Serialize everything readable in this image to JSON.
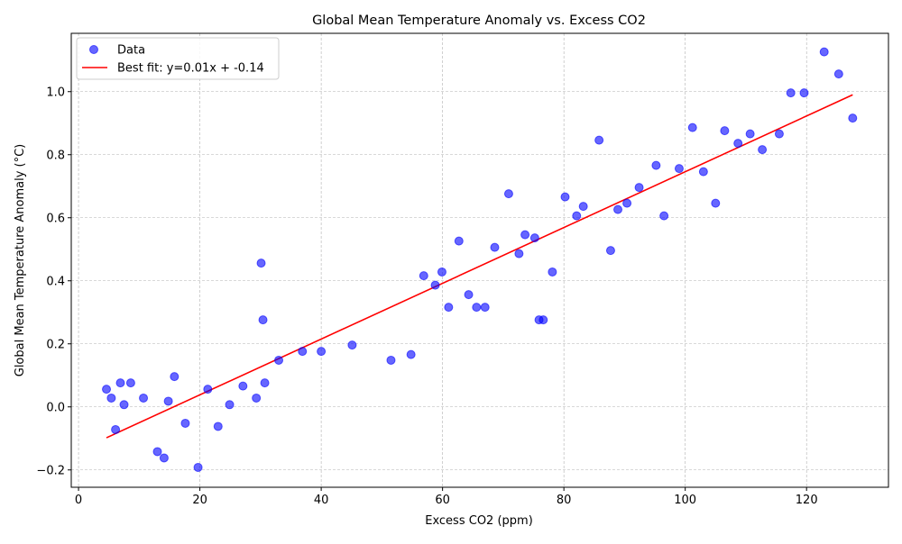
{
  "chart_data": {
    "type": "scatter",
    "title": "Global Mean Temperature Anomaly vs. Excess CO2",
    "xlabel": "Excess CO2 (ppm)",
    "ylabel": "Global Mean Temperature Anomaly (°C)",
    "xlim": [
      -1.2,
      133.5
    ],
    "ylim": [
      -0.255,
      1.185
    ],
    "xticks": [
      0,
      20,
      40,
      60,
      80,
      100,
      120
    ],
    "xtick_labels": [
      "0",
      "20",
      "40",
      "60",
      "80",
      "100",
      "120"
    ],
    "yticks": [
      -0.2,
      0.0,
      0.2,
      0.4,
      0.6,
      0.8,
      1.0
    ],
    "ytick_labels": [
      "−0.2",
      "0.0",
      "0.2",
      "0.4",
      "0.6",
      "0.8",
      "1.0"
    ],
    "grid": true,
    "legend_position": "top-left",
    "series": [
      {
        "name": "Data",
        "kind": "scatter",
        "color": "#0000ff",
        "x": [
          4.6,
          5.4,
          6.1,
          6.9,
          7.5,
          8.6,
          10.7,
          13.0,
          14.1,
          14.8,
          15.8,
          17.6,
          19.7,
          21.3,
          23.0,
          24.9,
          27.1,
          29.3,
          30.1,
          30.4,
          30.7,
          33.0,
          36.9,
          40.0,
          45.1,
          51.5,
          54.8,
          56.9,
          58.8,
          59.9,
          61.0,
          62.7,
          64.3,
          65.6,
          67.0,
          68.6,
          70.9,
          72.6,
          73.6,
          75.2,
          75.9,
          76.6,
          78.1,
          80.2,
          82.1,
          83.2,
          85.8,
          87.7,
          88.9,
          90.4,
          92.4,
          95.2,
          96.5,
          99.0,
          101.2,
          103.0,
          105.0,
          106.5,
          108.7,
          110.7,
          112.7,
          115.5,
          117.4,
          119.6,
          122.9,
          125.3,
          127.6
        ],
        "y": [
          0.056,
          0.028,
          -0.072,
          0.076,
          0.007,
          0.076,
          0.028,
          -0.142,
          -0.162,
          0.018,
          0.096,
          -0.052,
          -0.192,
          0.056,
          -0.062,
          0.007,
          0.066,
          0.028,
          0.456,
          0.276,
          0.076,
          0.148,
          0.176,
          0.176,
          0.196,
          0.148,
          0.166,
          0.416,
          0.386,
          0.428,
          0.316,
          0.526,
          0.356,
          0.316,
          0.316,
          0.506,
          0.676,
          0.486,
          0.546,
          0.536,
          0.276,
          0.276,
          0.428,
          0.666,
          0.606,
          0.636,
          0.846,
          0.496,
          0.626,
          0.646,
          0.696,
          0.766,
          0.606,
          0.756,
          0.886,
          0.746,
          0.646,
          0.876,
          0.836,
          0.866,
          0.816,
          0.866,
          0.996,
          0.996,
          1.126,
          1.056,
          0.916
        ]
      },
      {
        "name": "Best fit: y=0.01x + -0.14",
        "kind": "line",
        "color": "#ff0000",
        "x": [
          4.6,
          127.6
        ],
        "y": [
          -0.098,
          0.99
        ]
      }
    ]
  }
}
